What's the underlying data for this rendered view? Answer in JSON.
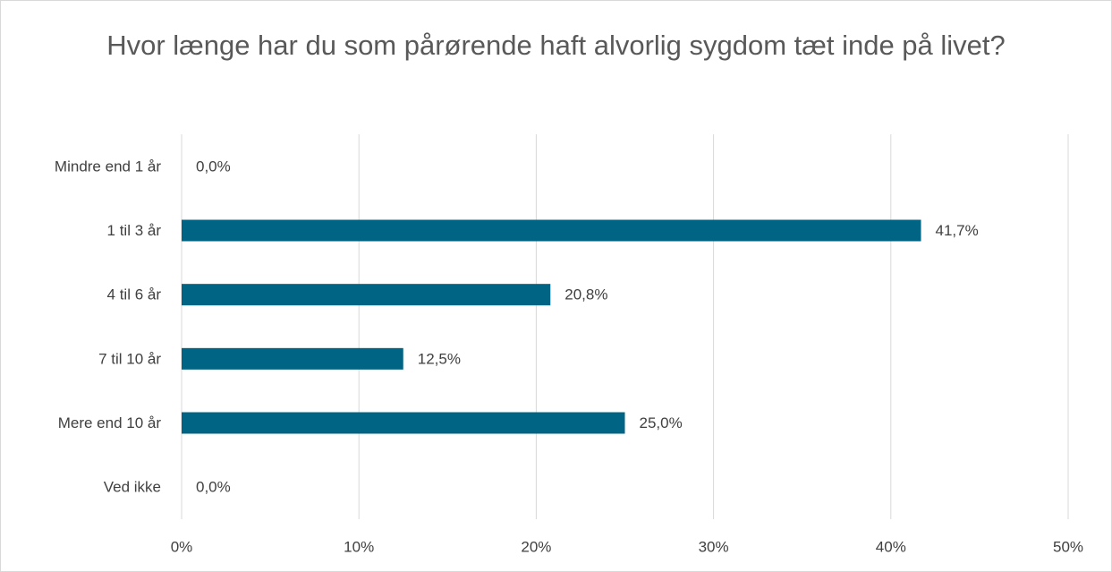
{
  "chart_data": {
    "type": "bar",
    "orientation": "horizontal",
    "title": "Hvor længe har du som pårørende haft alvorlig sygdom tæt inde på livet?",
    "categories": [
      "Mindre end 1 år",
      "1 til 3 år",
      "4 til 6 år",
      "7 til 10 år",
      "Mere end 10 år",
      "Ved ikke"
    ],
    "values": [
      0,
      41.7,
      20.8,
      12.5,
      25.0,
      0
    ],
    "value_labels": [
      "0,0%",
      "41,7%",
      "20,8%",
      "12,5%",
      "25,0%",
      "0,0%"
    ],
    "color": "#006585",
    "xlim": [
      0,
      50
    ],
    "xticks": [
      {
        "value": 0,
        "label": "0%"
      },
      {
        "value": 10,
        "label": "10%"
      },
      {
        "value": 20,
        "label": "20%"
      },
      {
        "value": 30,
        "label": "30%"
      },
      {
        "value": 40,
        "label": "40%"
      },
      {
        "value": 50,
        "label": "50%"
      }
    ],
    "grid": true
  }
}
